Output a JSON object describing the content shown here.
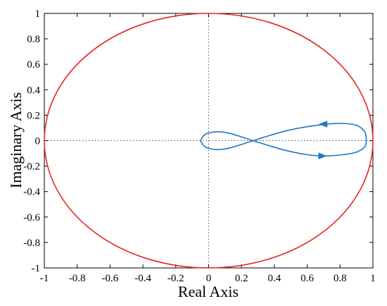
{
  "chart_data": {
    "type": "line",
    "title": "",
    "xlabel": "Real Axis",
    "ylabel": "Imaginary Axis",
    "xlim": [
      -1,
      1
    ],
    "ylim": [
      -1,
      1
    ],
    "xticks": [
      -1,
      -0.8,
      -0.6,
      -0.4,
      -0.2,
      0,
      0.2,
      0.4,
      0.6,
      0.8,
      1
    ],
    "yticks": [
      -1,
      -0.8,
      -0.6,
      -0.4,
      -0.2,
      0,
      0.2,
      0.4,
      0.6,
      0.8,
      1
    ],
    "xtick_labels": [
      "-1",
      "-0.8",
      "-0.6",
      "-0.4",
      "-0.2",
      "0",
      "0.2",
      "0.4",
      "0.6",
      "0.8",
      "1"
    ],
    "ytick_labels": [
      "-1",
      "-0.8",
      "-0.6",
      "-0.4",
      "-0.2",
      "0",
      "0.2",
      "0.4",
      "0.6",
      "0.8",
      "1"
    ],
    "grid": false,
    "reference_lines": [
      {
        "axis": "x",
        "value": 0,
        "style": "dotted"
      },
      {
        "axis": "y",
        "value": 0,
        "style": "dotted"
      }
    ],
    "series": [
      {
        "kind": "unit-circle",
        "color": "#e8221e",
        "center": [
          0,
          0
        ],
        "radius": 1
      },
      {
        "kind": "nyquist-curve",
        "color": "#1f77c4",
        "upper_branch": [
          [
            0.96,
            0.0
          ],
          [
            0.95,
            0.07
          ],
          [
            0.9,
            0.12
          ],
          [
            0.82,
            0.135
          ],
          [
            0.72,
            0.13
          ],
          [
            0.6,
            0.11
          ],
          [
            0.48,
            0.08
          ],
          [
            0.37,
            0.04
          ],
          [
            0.27,
            0.0
          ],
          [
            0.2,
            -0.03
          ],
          [
            0.12,
            -0.06
          ],
          [
            0.05,
            -0.07
          ],
          [
            -0.02,
            -0.05
          ],
          [
            -0.05,
            0.0
          ]
        ],
        "lower_branch": [
          [
            -0.05,
            0.0
          ],
          [
            -0.02,
            0.05
          ],
          [
            0.05,
            0.07
          ],
          [
            0.12,
            0.06
          ],
          [
            0.2,
            0.03
          ],
          [
            0.27,
            0.0
          ],
          [
            0.37,
            -0.04
          ],
          [
            0.48,
            -0.08
          ],
          [
            0.6,
            -0.11
          ],
          [
            0.7,
            -0.12
          ],
          [
            0.82,
            -0.11
          ],
          [
            0.9,
            -0.09
          ],
          [
            0.95,
            -0.05
          ],
          [
            0.96,
            0.0
          ]
        ],
        "arrows": [
          {
            "at": [
              0.7,
              0.13
            ],
            "direction": "left"
          },
          {
            "at": [
              0.69,
              -0.12
            ],
            "direction": "right"
          }
        ]
      }
    ]
  }
}
